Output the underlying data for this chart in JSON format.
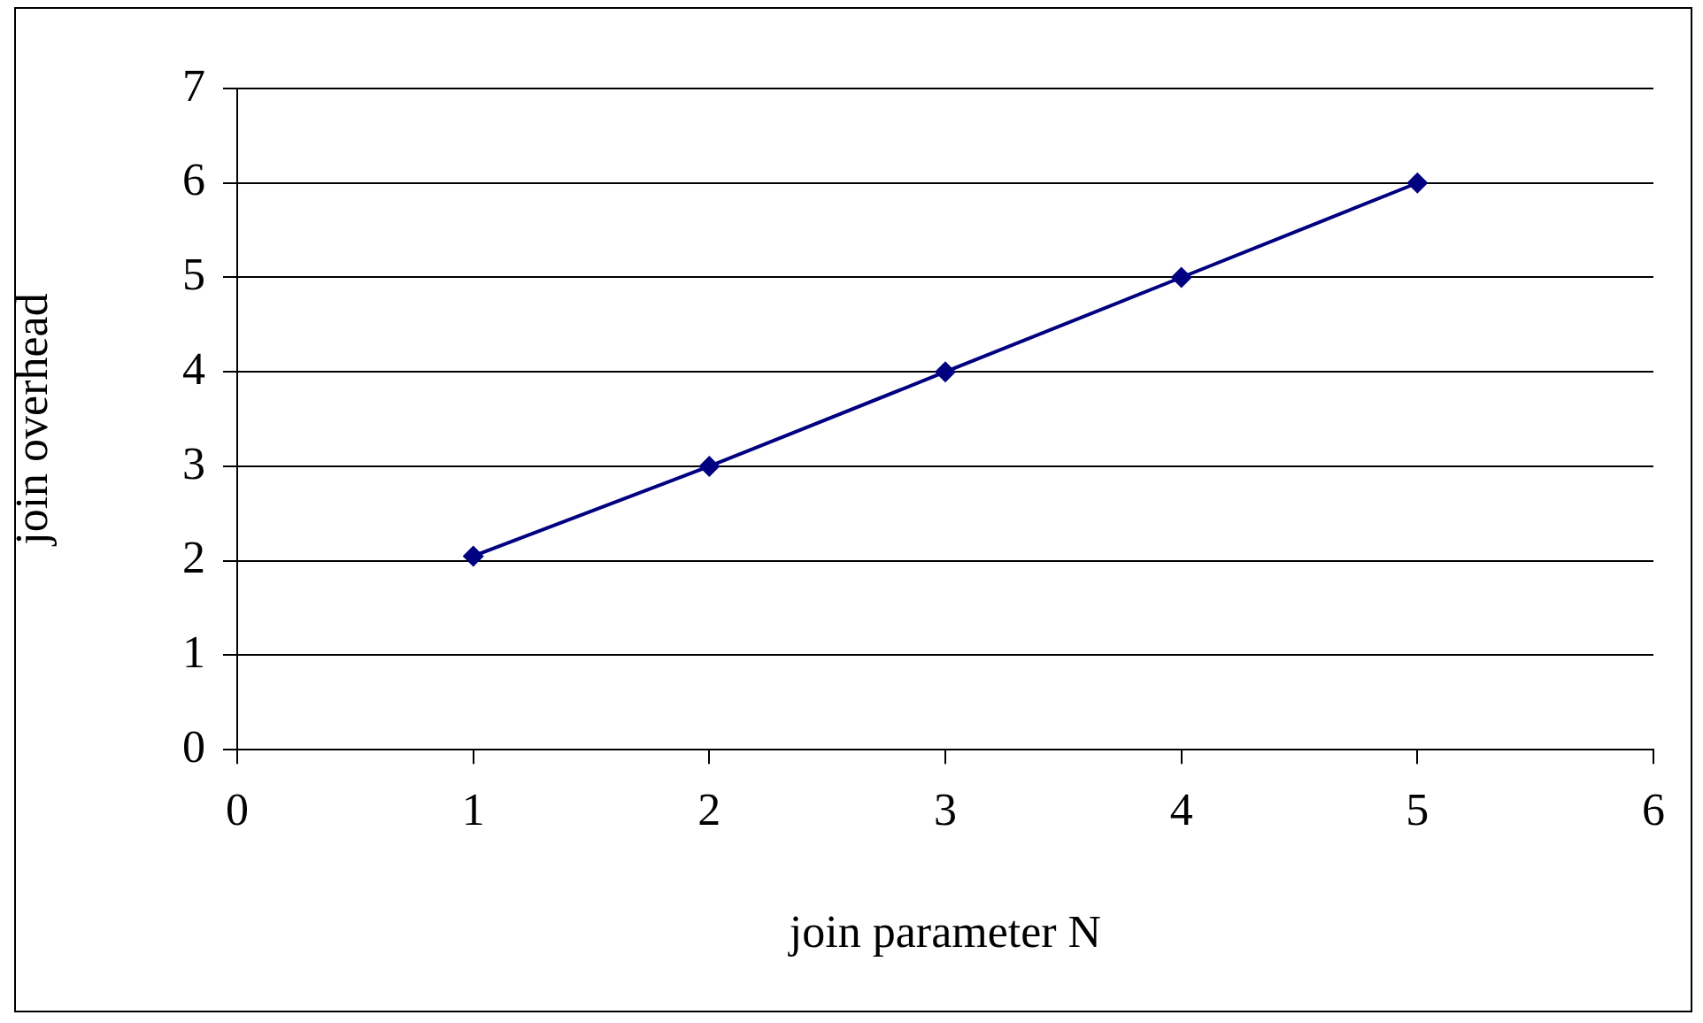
{
  "chart_data": {
    "type": "line",
    "xlabel": "join parameter N",
    "ylabel": "join overhead",
    "x": [
      1,
      2,
      3,
      4,
      5
    ],
    "series": [
      {
        "color": "#000080",
        "values": [
          2.05,
          3,
          4,
          5,
          6
        ]
      }
    ],
    "xlim": [
      0,
      6
    ],
    "xticks": [
      0,
      1,
      2,
      3,
      4,
      5,
      6
    ],
    "ylim": [
      0,
      7
    ],
    "yticks": [
      0,
      1,
      2,
      3,
      4,
      5,
      6,
      7
    ],
    "grid": "y",
    "legend": false,
    "marker": "diamond",
    "line_style": "solid"
  }
}
